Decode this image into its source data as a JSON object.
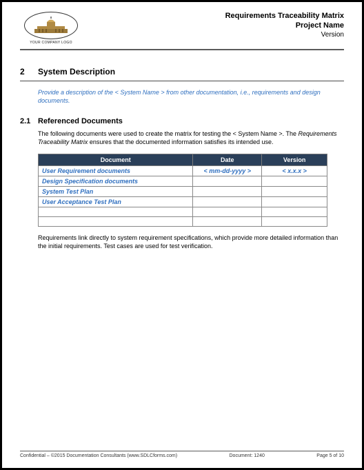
{
  "header": {
    "logo_caption": "YOUR COMPANY LOGO",
    "title1": "Requirements Traceability Matrix",
    "title2": "Project Name",
    "title3": "Version"
  },
  "section": {
    "num": "2",
    "title": "System Description",
    "instruction": "Provide a description of the < System Name > from other documentation, i.e., requirements and design documents."
  },
  "subsection": {
    "num": "2.1",
    "title": "Referenced Documents",
    "para1_a": "The following documents were used to create the matrix for testing the < System Name >. The ",
    "para1_em": "Requirements Traceability Matrix",
    "para1_b": " ensures that the documented information satisfies its intended use.",
    "para2": "Requirements link directly to system requirement specifications, which provide more detailed information than the initial requirements. Test cases are used for test verification."
  },
  "table": {
    "headers": {
      "doc": "Document",
      "date": "Date",
      "ver": "Version"
    },
    "rows": [
      {
        "doc": "User Requirement documents",
        "date": "< mm-dd-yyyy >",
        "ver": "< x.x.x >"
      },
      {
        "doc": "Design Specification documents",
        "date": "",
        "ver": ""
      },
      {
        "doc": "System Test Plan",
        "date": "",
        "ver": ""
      },
      {
        "doc": "User Acceptance Test Plan",
        "date": "",
        "ver": ""
      },
      {
        "doc": "",
        "date": "",
        "ver": ""
      },
      {
        "doc": "",
        "date": "",
        "ver": ""
      }
    ]
  },
  "footer": {
    "left": "Confidential – ©2015 Documentation Consultants (www.SDLCforms.com)",
    "mid": "Document: 1240",
    "right": "Page 5 of 10"
  },
  "colors": {
    "header_bg": "#2a3f59",
    "link_blue": "#2f6fbf"
  }
}
